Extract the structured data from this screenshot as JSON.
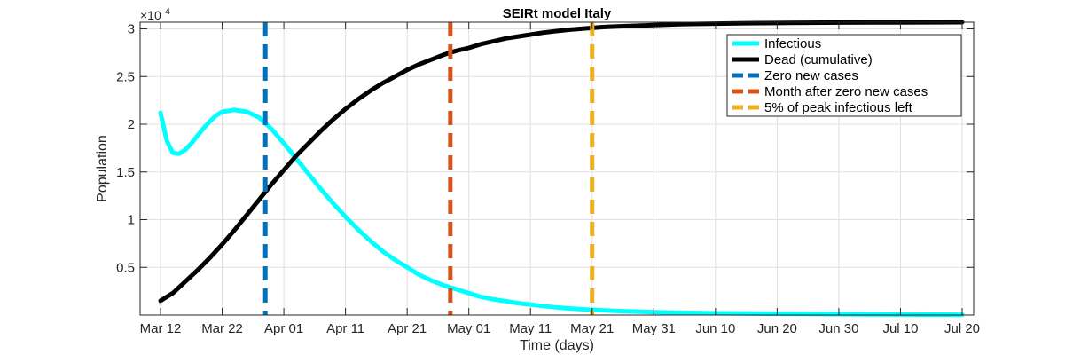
{
  "chart_data": {
    "type": "line",
    "title": "SEIRt model Italy",
    "xlabel": "Time (days)",
    "ylabel": "Population",
    "y_exponent_base": "×10",
    "y_exponent_power": "4",
    "xlim": [
      0,
      130
    ],
    "ylim": [
      0,
      30700
    ],
    "x_ticks": [
      {
        "x": 0,
        "label": "Mar 12"
      },
      {
        "x": 10,
        "label": "Mar 22"
      },
      {
        "x": 20,
        "label": "Apr 01"
      },
      {
        "x": 30,
        "label": "Apr 11"
      },
      {
        "x": 40,
        "label": "Apr 21"
      },
      {
        "x": 50,
        "label": "May 01"
      },
      {
        "x": 60,
        "label": "May 11"
      },
      {
        "x": 70,
        "label": "May 21"
      },
      {
        "x": 80,
        "label": "May 31"
      },
      {
        "x": 90,
        "label": "Jun 10"
      },
      {
        "x": 100,
        "label": "Jun 20"
      },
      {
        "x": 110,
        "label": "Jun 30"
      },
      {
        "x": 120,
        "label": "Jul 10"
      },
      {
        "x": 130,
        "label": "Jul 20"
      }
    ],
    "y_ticks": [
      {
        "y": 5000,
        "label": "0.5"
      },
      {
        "y": 10000,
        "label": "1"
      },
      {
        "y": 15000,
        "label": "1.5"
      },
      {
        "y": 20000,
        "label": "2"
      },
      {
        "y": 25000,
        "label": "2.5"
      },
      {
        "y": 30000,
        "label": "3"
      }
    ],
    "grid": true,
    "legend_position": "top-right",
    "series": [
      {
        "name": "Infectious",
        "color": "#00ffff",
        "style": "solid",
        "x": [
          0,
          1,
          2,
          3,
          4,
          5,
          6,
          7,
          8,
          9,
          10,
          12,
          14,
          16,
          18,
          20,
          22,
          24,
          26,
          28,
          30,
          32,
          34,
          36,
          38,
          40,
          42,
          44,
          46,
          48,
          50,
          52,
          54,
          56,
          58,
          60,
          62,
          64,
          66,
          68,
          70,
          72,
          74,
          76,
          78,
          80,
          85,
          90,
          95,
          100,
          105,
          110,
          115,
          120,
          125,
          130
        ],
        "y": [
          21200,
          18300,
          17000,
          16900,
          17300,
          18000,
          18800,
          19600,
          20300,
          20900,
          21300,
          21500,
          21300,
          20700,
          19500,
          18000,
          16400,
          14800,
          13200,
          11700,
          10300,
          9000,
          7800,
          6700,
          5800,
          5000,
          4200,
          3600,
          3100,
          2700,
          2300,
          1900,
          1650,
          1450,
          1250,
          1100,
          950,
          820,
          710,
          620,
          540,
          480,
          430,
          380,
          340,
          300,
          240,
          190,
          160,
          130,
          110,
          90,
          70,
          60,
          50,
          40
        ]
      },
      {
        "name": "Dead (cumulative)",
        "color": "#000000",
        "style": "solid",
        "x": [
          0,
          2,
          4,
          6,
          8,
          10,
          12,
          14,
          16,
          18,
          20,
          22,
          24,
          26,
          28,
          30,
          32,
          34,
          36,
          38,
          40,
          42,
          44,
          46,
          48,
          50,
          52,
          54,
          56,
          58,
          60,
          62,
          64,
          66,
          68,
          70,
          72,
          74,
          76,
          78,
          80,
          85,
          90,
          95,
          100,
          105,
          110,
          115,
          120,
          125,
          130
        ],
        "y": [
          1500,
          2300,
          3500,
          4700,
          6000,
          7400,
          8900,
          10500,
          12100,
          13700,
          15200,
          16700,
          18000,
          19300,
          20500,
          21600,
          22600,
          23500,
          24300,
          25000,
          25700,
          26300,
          26800,
          27300,
          27700,
          28000,
          28400,
          28700,
          29000,
          29200,
          29400,
          29600,
          29750,
          29900,
          30000,
          30100,
          30200,
          30250,
          30300,
          30350,
          30400,
          30500,
          30550,
          30600,
          30620,
          30640,
          30660,
          30670,
          30680,
          30690,
          30700
        ]
      },
      {
        "name": "Zero new cases",
        "color": "#0072bd",
        "style": "dashed",
        "vline_x": 17
      },
      {
        "name": "Month after zero new cases",
        "color": "#d95319",
        "style": "dashed",
        "vline_x": 47
      },
      {
        "name": "5% of peak infectious left",
        "color": "#edb120",
        "style": "dashed",
        "vline_x": 70
      }
    ]
  }
}
